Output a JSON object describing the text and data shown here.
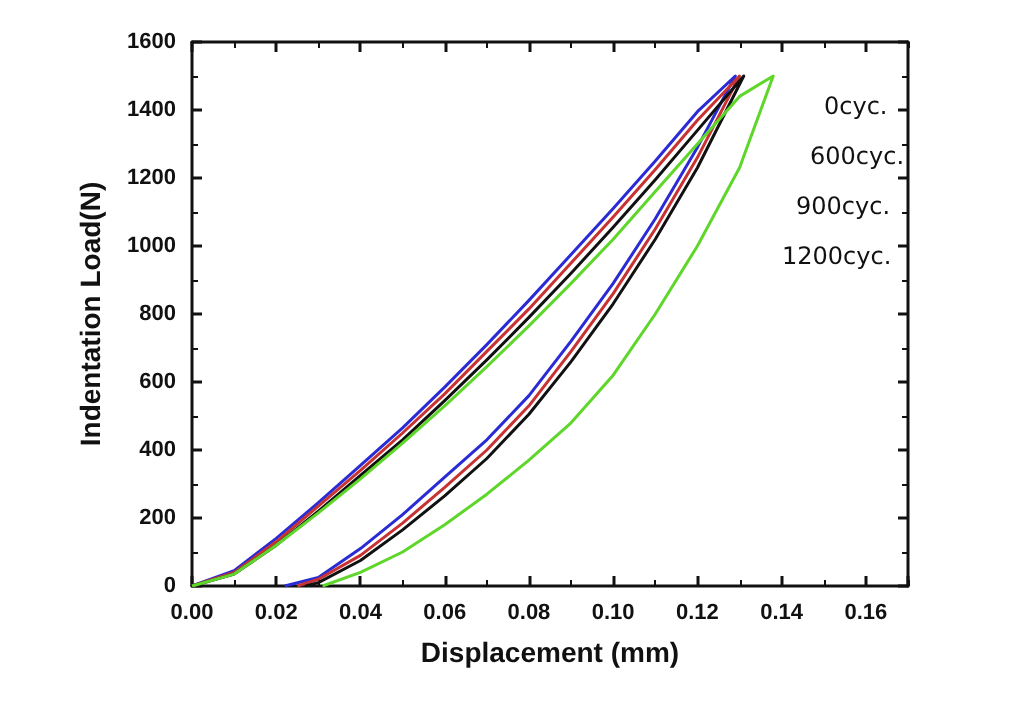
{
  "chart_data": {
    "type": "line",
    "xlabel": "Displacement (mm)",
    "ylabel": "Indentation Load(N)",
    "xlim": [
      0,
      0.17
    ],
    "ylim": [
      0,
      1600
    ],
    "xticks": [
      {
        "value": 0,
        "label": "0.00"
      },
      {
        "value": 0.02,
        "label": "0.02"
      },
      {
        "value": 0.04,
        "label": "0.04"
      },
      {
        "value": 0.06,
        "label": "0.06"
      },
      {
        "value": 0.08,
        "label": "0.08"
      },
      {
        "value": 0.1,
        "label": "0.10"
      },
      {
        "value": 0.12,
        "label": "0.12"
      },
      {
        "value": 0.14,
        "label": "0.14"
      },
      {
        "value": 0.16,
        "label": "0.16"
      }
    ],
    "yticks": [
      0,
      200,
      400,
      600,
      800,
      1000,
      1200,
      1400,
      1600
    ],
    "grid": false,
    "marker": "none",
    "line_style": "solid",
    "series": [
      {
        "color": "#2b2bd6",
        "x": [
          0,
          0.01,
          0.02,
          0.03,
          0.04,
          0.05,
          0.06,
          0.07,
          0.08,
          0.09,
          0.1,
          0.11,
          0.12,
          0.129,
          0.12,
          0.11,
          0.1,
          0.09,
          0.08,
          0.07,
          0.06,
          0.05,
          0.04,
          0.03,
          0.022
        ],
        "values": [
          0,
          45,
          140,
          245,
          355,
          465,
          585,
          710,
          840,
          975,
          1110,
          1250,
          1395,
          1500,
          1290,
          1080,
          890,
          720,
          560,
          430,
          320,
          210,
          110,
          25,
          0
        ]
      },
      {
        "color": "#c83232",
        "x": [
          0,
          0.01,
          0.02,
          0.03,
          0.04,
          0.05,
          0.06,
          0.07,
          0.08,
          0.09,
          0.1,
          0.11,
          0.12,
          0.13,
          0.12,
          0.11,
          0.1,
          0.09,
          0.08,
          0.07,
          0.06,
          0.05,
          0.04,
          0.03,
          0.025
        ],
        "values": [
          0,
          40,
          130,
          235,
          340,
          450,
          565,
          690,
          815,
          950,
          1085,
          1225,
          1370,
          1500,
          1260,
          1050,
          860,
          690,
          530,
          400,
          290,
          185,
          90,
          20,
          0
        ]
      },
      {
        "color": "#111111",
        "x": [
          0,
          0.01,
          0.02,
          0.03,
          0.04,
          0.05,
          0.06,
          0.07,
          0.08,
          0.09,
          0.1,
          0.11,
          0.12,
          0.131,
          0.12,
          0.11,
          0.1,
          0.09,
          0.08,
          0.07,
          0.06,
          0.05,
          0.04,
          0.03,
          0.027
        ],
        "values": [
          0,
          35,
          120,
          220,
          325,
          430,
          545,
          665,
          790,
          920,
          1055,
          1195,
          1340,
          1500,
          1230,
          1020,
          830,
          660,
          505,
          375,
          265,
          165,
          75,
          10,
          0
        ]
      },
      {
        "color": "#5ed62a",
        "x": [
          0,
          0.01,
          0.02,
          0.03,
          0.04,
          0.05,
          0.06,
          0.07,
          0.08,
          0.09,
          0.1,
          0.11,
          0.12,
          0.13,
          0.138,
          0.13,
          0.12,
          0.11,
          0.1,
          0.09,
          0.08,
          0.07,
          0.06,
          0.05,
          0.04,
          0.031
        ],
        "values": [
          0,
          35,
          120,
          215,
          315,
          420,
          530,
          645,
          765,
          890,
          1020,
          1160,
          1300,
          1440,
          1500,
          1230,
          1000,
          800,
          620,
          480,
          370,
          270,
          180,
          100,
          40,
          0
        ]
      }
    ],
    "annotations": [
      "0cyc.",
      "600cyc.",
      "900cyc.",
      "1200cyc."
    ]
  }
}
